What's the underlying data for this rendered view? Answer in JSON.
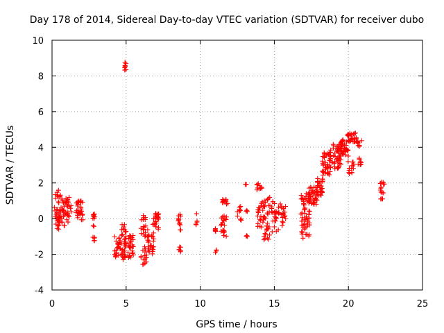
{
  "chart_data": {
    "type": "scatter",
    "title": "Day 178 of 2014, Sidereal Day-to-day VTEC variation (SDTVAR) for receiver dubo",
    "xlabel": "GPS time / hours",
    "ylabel": "SDTVAR / TECUs",
    "xlim": [
      0,
      25
    ],
    "ylim": [
      -4,
      10
    ],
    "xticks": [
      "0",
      "5",
      "10",
      "15",
      "20",
      "25"
    ],
    "yticks": [
      "-4",
      "-2",
      "0",
      "2",
      "4",
      "6",
      "8",
      "10"
    ],
    "grid": true,
    "marker": "plus",
    "color": "#ff0000",
    "series": [
      {
        "name": "SDTVAR",
        "clusters": [
          {
            "x": [
              0.15,
              0.6
            ],
            "y": [
              -0.6,
              1.6
            ],
            "n": 40
          },
          {
            "x": [
              0.6,
              1.3
            ],
            "y": [
              -0.4,
              1.2
            ],
            "n": 45
          },
          {
            "x": [
              1.6,
              2.1
            ],
            "y": [
              -0.1,
              1.0
            ],
            "n": 30
          },
          {
            "x": [
              2.75,
              2.9
            ],
            "y": [
              -0.5,
              0.3
            ],
            "n": 10
          },
          {
            "x": [
              2.7,
              2.9
            ],
            "y": [
              -1.3,
              -1.0
            ],
            "n": 6
          },
          {
            "x": [
              4.2,
              4.7
            ],
            "y": [
              -2.2,
              -1.0
            ],
            "n": 25
          },
          {
            "x": [
              4.7,
              5.0
            ],
            "y": [
              -2.3,
              -0.3
            ],
            "n": 35
          },
          {
            "x": [
              4.9,
              5.0
            ],
            "y": [
              8.3,
              8.9
            ],
            "n": 8
          },
          {
            "x": [
              5.1,
              5.5
            ],
            "y": [
              -2.2,
              -0.9
            ],
            "n": 30
          },
          {
            "x": [
              5.9,
              6.4
            ],
            "y": [
              -2.6,
              -1.5
            ],
            "n": 15
          },
          {
            "x": [
              6.0,
              6.5
            ],
            "y": [
              -1.0,
              0.2
            ],
            "n": 20
          },
          {
            "x": [
              6.4,
              6.9
            ],
            "y": [
              -2.0,
              -0.8
            ],
            "n": 25
          },
          {
            "x": [
              6.8,
              7.2
            ],
            "y": [
              -0.6,
              0.3
            ],
            "n": 25
          },
          {
            "x": [
              8.5,
              8.7
            ],
            "y": [
              -0.7,
              0.4
            ],
            "n": 12
          },
          {
            "x": [
              8.5,
              8.7
            ],
            "y": [
              -1.9,
              -1.5
            ],
            "n": 6
          },
          {
            "x": [
              9.7,
              9.8
            ],
            "y": [
              -0.4,
              0.3
            ],
            "n": 5
          },
          {
            "x": [
              10.95,
              11.05
            ],
            "y": [
              -0.8,
              -0.4
            ],
            "n": 5
          },
          {
            "x": [
              11.0,
              11.1
            ],
            "y": [
              -1.9,
              -1.7
            ],
            "n": 3
          },
          {
            "x": [
              11.4,
              11.8
            ],
            "y": [
              -1.0,
              0.3
            ],
            "n": 20
          },
          {
            "x": [
              11.5,
              11.9
            ],
            "y": [
              0.8,
              1.1
            ],
            "n": 12
          },
          {
            "x": [
              12.5,
              12.8
            ],
            "y": [
              -0.2,
              0.8
            ],
            "n": 10
          },
          {
            "x": [
              13.05,
              13.15
            ],
            "y": [
              1.9,
              2.1
            ],
            "n": 3
          },
          {
            "x": [
              13.1,
              13.2
            ],
            "y": [
              0.4,
              0.7
            ],
            "n": 3
          },
          {
            "x": [
              13.1,
              13.2
            ],
            "y": [
              -1.1,
              -0.9
            ],
            "n": 3
          },
          {
            "x": [
              13.8,
              14.2
            ],
            "y": [
              1.6,
              2.0
            ],
            "n": 10
          },
          {
            "x": [
              13.8,
              14.3
            ],
            "y": [
              -0.5,
              1.0
            ],
            "n": 25
          },
          {
            "x": [
              14.3,
              14.7
            ],
            "y": [
              -1.3,
              1.3
            ],
            "n": 30
          },
          {
            "x": [
              14.8,
              15.3
            ],
            "y": [
              -0.8,
              1.0
            ],
            "n": 25
          },
          {
            "x": [
              15.3,
              15.8
            ],
            "y": [
              -0.5,
              0.9
            ],
            "n": 20
          },
          {
            "x": [
              16.8,
              17.4
            ],
            "y": [
              -1.1,
              1.5
            ],
            "n": 60
          },
          {
            "x": [
              17.3,
              17.9
            ],
            "y": [
              0.8,
              1.8
            ],
            "n": 40
          },
          {
            "x": [
              17.9,
              18.3
            ],
            "y": [
              1.3,
              2.3
            ],
            "n": 30
          },
          {
            "x": [
              18.2,
              18.8
            ],
            "y": [
              2.4,
              3.7
            ],
            "n": 40
          },
          {
            "x": [
              18.7,
              19.5
            ],
            "y": [
              2.8,
              4.3
            ],
            "n": 50
          },
          {
            "x": [
              19.4,
              20.0
            ],
            "y": [
              3.5,
              4.5
            ],
            "n": 40
          },
          {
            "x": [
              19.9,
              20.6
            ],
            "y": [
              4.3,
              4.8
            ],
            "n": 30
          },
          {
            "x": [
              19.9,
              20.4
            ],
            "y": [
              2.5,
              3.2
            ],
            "n": 15
          },
          {
            "x": [
              20.6,
              20.9
            ],
            "y": [
              4.0,
              4.4
            ],
            "n": 8
          },
          {
            "x": [
              20.6,
              20.9
            ],
            "y": [
              3.0,
              3.4
            ],
            "n": 8
          },
          {
            "x": [
              22.15,
              22.45
            ],
            "y": [
              1.1,
              2.1
            ],
            "n": 15
          }
        ]
      }
    ]
  }
}
